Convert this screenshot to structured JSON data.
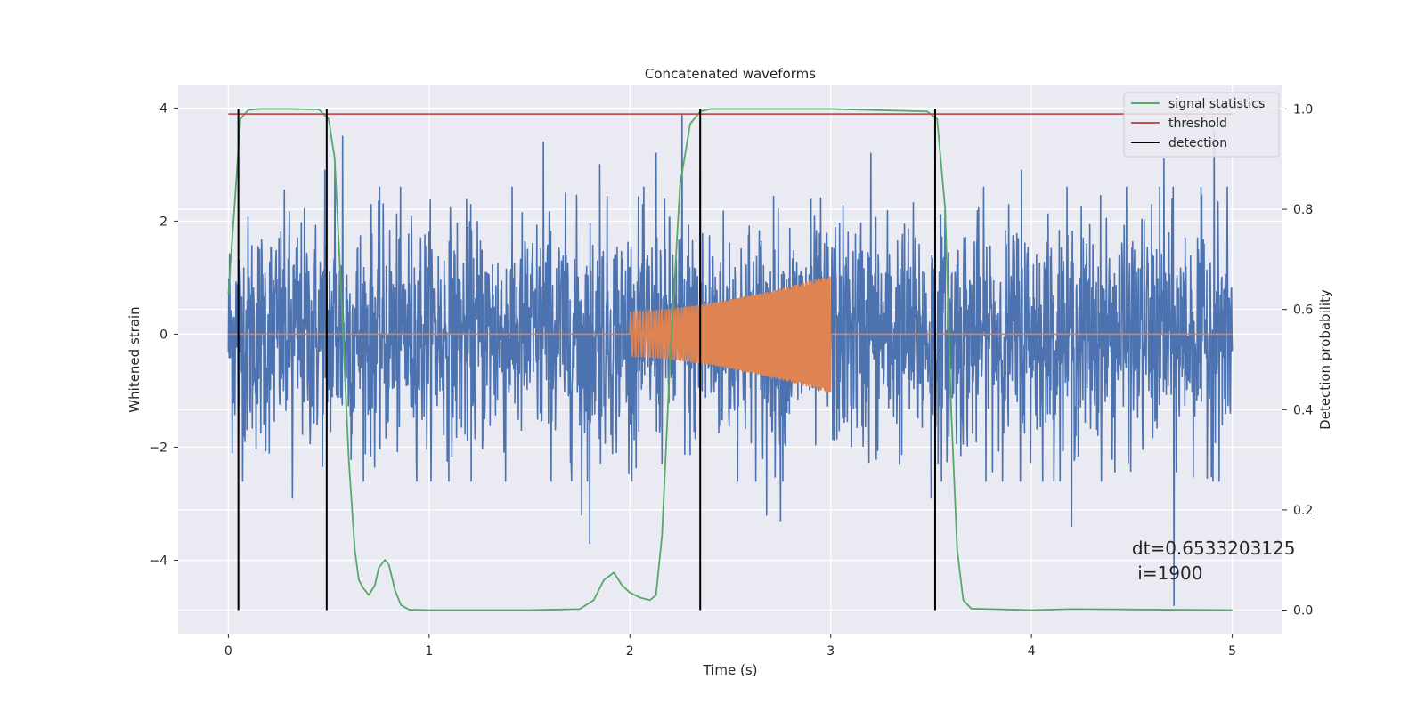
{
  "chart_data": {
    "type": "line",
    "title": "Concatenated waveforms",
    "xlabel": "Time (s)",
    "ylabel": "Whitened strain",
    "y2label": "Detection probability",
    "xlim": [
      -0.25,
      5.25
    ],
    "ylim": [
      -5.3,
      4.4
    ],
    "y2lim": [
      -0.047,
      1.047
    ],
    "xticks": [
      0,
      1,
      2,
      3,
      4,
      5
    ],
    "xtick_labels": [
      "0",
      "1",
      "2",
      "3",
      "4",
      "5"
    ],
    "yticks": [
      4,
      2,
      0,
      -2,
      -4
    ],
    "ytick_labels": [
      "4",
      "2",
      "0",
      "−2",
      "−4"
    ],
    "y2ticks": [
      1.0,
      0.8,
      0.6,
      0.4,
      0.2,
      0.0
    ],
    "y2tick_labels": [
      "1.0",
      "0.8",
      "0.6",
      "0.4",
      "0.2",
      "0.0"
    ],
    "grid": true,
    "legend_position": "top-right",
    "series": [
      {
        "label_key": "noise",
        "axis": "left",
        "color": "#4c72b0",
        "style": "noise",
        "x_range": [
          0,
          5
        ],
        "envelope": 1.2,
        "peaks": [
          [
            0.05,
            -2.1
          ],
          [
            0.32,
            -2.9
          ],
          [
            0.48,
            2.9
          ],
          [
            0.53,
            3.0
          ],
          [
            0.57,
            3.5
          ],
          [
            1.38,
            -2.6
          ],
          [
            1.57,
            3.4
          ],
          [
            1.76,
            -3.2
          ],
          [
            1.8,
            -3.7
          ],
          [
            1.85,
            3.0
          ],
          [
            2.13,
            3.2
          ],
          [
            2.26,
            3.9
          ],
          [
            2.35,
            3.8
          ],
          [
            2.68,
            -3.2
          ],
          [
            2.75,
            -3.3
          ],
          [
            3.2,
            3.2
          ],
          [
            3.5,
            -2.9
          ],
          [
            3.95,
            2.9
          ],
          [
            4.2,
            -3.4
          ],
          [
            4.66,
            3.1
          ],
          [
            4.71,
            -4.8
          ],
          [
            4.91,
            3.6
          ]
        ]
      },
      {
        "label_key": "injected",
        "axis": "left",
        "color": "#dd8452",
        "style": "chirp",
        "x_range": [
          0,
          5
        ],
        "chirp_start": 2.0,
        "chirp_end": 3.0,
        "amp_start": 0.4,
        "amp_end": 1.05
      },
      {
        "name": "signal statistics",
        "axis": "right",
        "color": "#55a868",
        "style": "line",
        "x": [
          0.0,
          0.03,
          0.06,
          0.1,
          0.15,
          0.3,
          0.45,
          0.5,
          0.53,
          0.56,
          0.6,
          0.63,
          0.65,
          0.67,
          0.7,
          0.73,
          0.75,
          0.78,
          0.8,
          0.83,
          0.86,
          0.9,
          1.0,
          1.5,
          1.75,
          1.82,
          1.87,
          1.92,
          1.96,
          2.0,
          2.05,
          2.1,
          2.13,
          2.16,
          2.2,
          2.25,
          2.3,
          2.35,
          2.4,
          2.5,
          3.0,
          3.48,
          3.53,
          3.57,
          3.6,
          3.63,
          3.66,
          3.7,
          4.0,
          4.2,
          5.0
        ],
        "y": [
          0.63,
          0.8,
          0.98,
          0.998,
          1.0,
          1.0,
          0.999,
          0.98,
          0.9,
          0.65,
          0.3,
          0.12,
          0.06,
          0.045,
          0.03,
          0.05,
          0.085,
          0.1,
          0.09,
          0.04,
          0.01,
          0.001,
          0.0,
          0.0,
          0.002,
          0.02,
          0.06,
          0.075,
          0.05,
          0.035,
          0.025,
          0.02,
          0.03,
          0.15,
          0.5,
          0.85,
          0.97,
          0.995,
          1.0,
          1.0,
          1.0,
          0.995,
          0.98,
          0.8,
          0.4,
          0.12,
          0.02,
          0.003,
          0.0,
          0.002,
          0.0
        ]
      },
      {
        "name": "threshold",
        "axis": "right",
        "color": "#c44e52",
        "style": "line",
        "x": [
          0,
          5
        ],
        "y": [
          0.99,
          0.99
        ]
      },
      {
        "name": "detection",
        "axis": "right",
        "color": "#000000",
        "style": "vlines",
        "x": [
          0.05,
          0.49,
          2.35,
          3.52
        ],
        "ymin": 0.0,
        "ymax": 1.0
      }
    ],
    "annotation": {
      "line1": "dt=0.6533203125",
      "line2": " i=1900",
      "x": 4.5,
      "y": -3.9
    }
  }
}
